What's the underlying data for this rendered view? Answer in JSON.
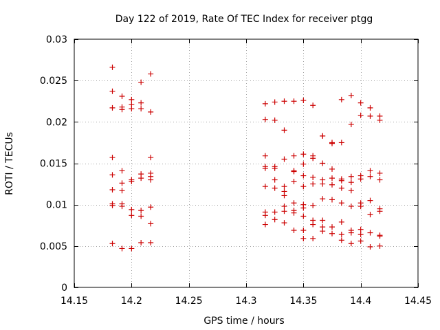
{
  "chart_data": {
    "type": "scatter",
    "title": "Day 122 of 2019, Rate Of TEC Index for receiver ptgg",
    "xlabel": "GPS time / hours",
    "ylabel": "ROTI / TECUs",
    "xlim": [
      14.15,
      14.45
    ],
    "ylim": [
      0,
      0.03
    ],
    "x_ticks": [
      14.15,
      14.2,
      14.25,
      14.3,
      14.35,
      14.4,
      14.45
    ],
    "x_tick_labels": [
      "14.15",
      "14.2",
      "14.25",
      "14.3",
      "14.35",
      "14.4",
      "14.45"
    ],
    "y_ticks": [
      0,
      0.005,
      0.01,
      0.015,
      0.02,
      0.025,
      0.03
    ],
    "y_tick_labels": [
      "0",
      "0.005",
      "0.01",
      "0.015",
      "0.02",
      "0.025",
      "0.03"
    ],
    "grid": true,
    "marker": "plus",
    "marker_color": "#cc0000",
    "series": [
      {
        "name": "ROTI",
        "points": [
          [
            14.1833,
            0.0266
          ],
          [
            14.1833,
            0.0237
          ],
          [
            14.1833,
            0.0217
          ],
          [
            14.1833,
            0.0157
          ],
          [
            14.1833,
            0.0136
          ],
          [
            14.1833,
            0.0118
          ],
          [
            14.1833,
            0.0101
          ],
          [
            14.1833,
            0.0099
          ],
          [
            14.1833,
            0.0053
          ],
          [
            14.1917,
            0.0231
          ],
          [
            14.1917,
            0.0218
          ],
          [
            14.1917,
            0.0215
          ],
          [
            14.1917,
            0.0141
          ],
          [
            14.1917,
            0.0126
          ],
          [
            14.1917,
            0.0117
          ],
          [
            14.1917,
            0.0101
          ],
          [
            14.1917,
            0.0098
          ],
          [
            14.1917,
            0.0047
          ],
          [
            14.2,
            0.0227
          ],
          [
            14.2,
            0.0221
          ],
          [
            14.2,
            0.0216
          ],
          [
            14.2,
            0.013
          ],
          [
            14.2,
            0.0128
          ],
          [
            14.2,
            0.0094
          ],
          [
            14.2,
            0.0087
          ],
          [
            14.2,
            0.0047
          ],
          [
            14.2083,
            0.0248
          ],
          [
            14.2083,
            0.0223
          ],
          [
            14.2083,
            0.0216
          ],
          [
            14.2083,
            0.0137
          ],
          [
            14.2083,
            0.0132
          ],
          [
            14.2083,
            0.0093
          ],
          [
            14.2083,
            0.0086
          ],
          [
            14.2083,
            0.0054
          ],
          [
            14.2167,
            0.0258
          ],
          [
            14.2167,
            0.0212
          ],
          [
            14.2167,
            0.0157
          ],
          [
            14.2167,
            0.0138
          ],
          [
            14.2167,
            0.0134
          ],
          [
            14.2167,
            0.013
          ],
          [
            14.2167,
            0.0097
          ],
          [
            14.2167,
            0.0077
          ],
          [
            14.2167,
            0.0054
          ],
          [
            14.3167,
            0.0222
          ],
          [
            14.3167,
            0.0203
          ],
          [
            14.3167,
            0.0159
          ],
          [
            14.3167,
            0.0146
          ],
          [
            14.3167,
            0.0144
          ],
          [
            14.3167,
            0.0122
          ],
          [
            14.3167,
            0.0091
          ],
          [
            14.3167,
            0.0087
          ],
          [
            14.3167,
            0.0076
          ],
          [
            14.325,
            0.0224
          ],
          [
            14.325,
            0.0202
          ],
          [
            14.325,
            0.0146
          ],
          [
            14.325,
            0.0144
          ],
          [
            14.325,
            0.013
          ],
          [
            14.325,
            0.012
          ],
          [
            14.325,
            0.0091
          ],
          [
            14.325,
            0.0082
          ],
          [
            14.3333,
            0.0225
          ],
          [
            14.3333,
            0.019
          ],
          [
            14.3333,
            0.0155
          ],
          [
            14.3333,
            0.0122
          ],
          [
            14.3333,
            0.0116
          ],
          [
            14.3333,
            0.0111
          ],
          [
            14.3333,
            0.0098
          ],
          [
            14.3333,
            0.0092
          ],
          [
            14.3333,
            0.0078
          ],
          [
            14.3417,
            0.0225
          ],
          [
            14.3417,
            0.0159
          ],
          [
            14.3417,
            0.0141
          ],
          [
            14.3417,
            0.014
          ],
          [
            14.3417,
            0.0128
          ],
          [
            14.3417,
            0.0102
          ],
          [
            14.3417,
            0.0093
          ],
          [
            14.3417,
            0.009
          ],
          [
            14.3417,
            0.0069
          ],
          [
            14.35,
            0.0226
          ],
          [
            14.35,
            0.0161
          ],
          [
            14.35,
            0.0149
          ],
          [
            14.35,
            0.0135
          ],
          [
            14.35,
            0.0122
          ],
          [
            14.35,
            0.01
          ],
          [
            14.35,
            0.0096
          ],
          [
            14.35,
            0.0086
          ],
          [
            14.35,
            0.0069
          ],
          [
            14.35,
            0.0059
          ],
          [
            14.3583,
            0.022
          ],
          [
            14.3583,
            0.0159
          ],
          [
            14.3583,
            0.0156
          ],
          [
            14.3583,
            0.0133
          ],
          [
            14.3583,
            0.0125
          ],
          [
            14.3583,
            0.0099
          ],
          [
            14.3583,
            0.0081
          ],
          [
            14.3583,
            0.0076
          ],
          [
            14.3583,
            0.0059
          ],
          [
            14.3667,
            0.0183
          ],
          [
            14.3667,
            0.0183
          ],
          [
            14.3667,
            0.015
          ],
          [
            14.3667,
            0.013
          ],
          [
            14.3667,
            0.0125
          ],
          [
            14.3667,
            0.0107
          ],
          [
            14.3667,
            0.0081
          ],
          [
            14.3667,
            0.0073
          ],
          [
            14.3667,
            0.0068
          ],
          [
            14.375,
            0.0175
          ],
          [
            14.375,
            0.0174
          ],
          [
            14.375,
            0.0143
          ],
          [
            14.375,
            0.0132
          ],
          [
            14.375,
            0.0124
          ],
          [
            14.375,
            0.0106
          ],
          [
            14.375,
            0.0073
          ],
          [
            14.375,
            0.0065
          ],
          [
            14.3833,
            0.0227
          ],
          [
            14.3833,
            0.0175
          ],
          [
            14.3833,
            0.0131
          ],
          [
            14.3833,
            0.0129
          ],
          [
            14.3833,
            0.012
          ],
          [
            14.3833,
            0.0102
          ],
          [
            14.3833,
            0.0079
          ],
          [
            14.3833,
            0.0064
          ],
          [
            14.3833,
            0.0057
          ],
          [
            14.3917,
            0.0232
          ],
          [
            14.3917,
            0.0197
          ],
          [
            14.3917,
            0.0134
          ],
          [
            14.3917,
            0.0127
          ],
          [
            14.3917,
            0.0117
          ],
          [
            14.3917,
            0.0098
          ],
          [
            14.3917,
            0.0069
          ],
          [
            14.3917,
            0.0066
          ],
          [
            14.3917,
            0.0053
          ],
          [
            14.4,
            0.0223
          ],
          [
            14.4,
            0.0208
          ],
          [
            14.4,
            0.0135
          ],
          [
            14.4,
            0.0131
          ],
          [
            14.4,
            0.0102
          ],
          [
            14.4,
            0.0098
          ],
          [
            14.4,
            0.007
          ],
          [
            14.4,
            0.0064
          ],
          [
            14.4,
            0.0056
          ],
          [
            14.4083,
            0.0217
          ],
          [
            14.4083,
            0.0207
          ],
          [
            14.4083,
            0.0141
          ],
          [
            14.4083,
            0.0134
          ],
          [
            14.4083,
            0.0105
          ],
          [
            14.4083,
            0.0088
          ],
          [
            14.4083,
            0.0066
          ],
          [
            14.4083,
            0.0049
          ],
          [
            14.4167,
            0.0207
          ],
          [
            14.4167,
            0.0202
          ],
          [
            14.4167,
            0.0138
          ],
          [
            14.4167,
            0.013
          ],
          [
            14.4167,
            0.0095
          ],
          [
            14.4167,
            0.0092
          ],
          [
            14.4167,
            0.0062
          ],
          [
            14.4167,
            0.0063
          ],
          [
            14.4167,
            0.005
          ]
        ]
      }
    ]
  }
}
